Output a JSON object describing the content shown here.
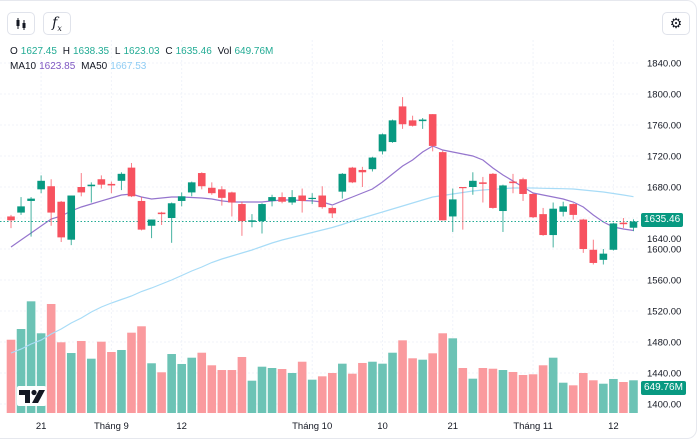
{
  "toolbar": {
    "chart_type_icon": "candlestick-icon",
    "indicators_icon": "fx-icon",
    "settings_icon": "gear-icon"
  },
  "legend": {
    "o_label": "O",
    "o_value": "1627.45",
    "h_label": "H",
    "h_value": "1638.35",
    "l_label": "L",
    "l_value": "1623.03",
    "c_label": "C",
    "c_value": "1635.46",
    "vol_label": "Vol",
    "vol_value": "649.76M",
    "ma10_label": "MA10",
    "ma10_value": "1623.85",
    "ma50_label": "MA50",
    "ma50_value": "1667.53"
  },
  "last_price_tag": "1635.46",
  "last_volume_tag": "649.76M",
  "colors": {
    "up": "#089981",
    "down": "#f7525f",
    "vol_up": "#6cc3b5",
    "vol_down": "#fa9a9e",
    "ma10": "#9575cd",
    "ma50": "#a8dcf7",
    "last_line": "#22ab94"
  },
  "chart_data": {
    "type": "candlestick",
    "title": "",
    "grid": true,
    "price_range": [
      1390,
      1850
    ],
    "price_ticks": [
      "1840.00",
      "1800.00",
      "1760.00",
      "1720.00",
      "1680.00",
      "1640.00",
      "1600.00",
      "1560.00",
      "1520.00",
      "1480.00",
      "1440.00",
      "1400.00"
    ],
    "x_ticks": [
      {
        "label": "21",
        "index": 3
      },
      {
        "label": "Tháng 9",
        "index": 10
      },
      {
        "label": "12",
        "index": 17
      },
      {
        "label": "Tháng 10",
        "index": 30
      },
      {
        "label": "10",
        "index": 37
      },
      {
        "label": "21",
        "index": 44
      },
      {
        "label": "Tháng 11",
        "index": 52
      },
      {
        "label": "12",
        "index": 60
      }
    ],
    "ohlc": [
      [
        1642,
        1644,
        1627,
        1637
      ],
      [
        1647,
        1667,
        1644,
        1655
      ],
      [
        1662,
        1667,
        1616,
        1665
      ],
      [
        1677,
        1695,
        1672,
        1688
      ],
      [
        1681,
        1690,
        1630,
        1647
      ],
      [
        1661,
        1662,
        1609,
        1615
      ],
      [
        1612,
        1669,
        1605,
        1669
      ],
      [
        1680,
        1698,
        1668,
        1673
      ],
      [
        1681,
        1686,
        1660,
        1683
      ],
      [
        1690,
        1695,
        1678,
        1683
      ],
      [
        1684,
        1687,
        1672,
        1682
      ],
      [
        1688,
        1699,
        1676,
        1697
      ],
      [
        1705,
        1711,
        1667,
        1668
      ],
      [
        1662,
        1667,
        1624,
        1625
      ],
      [
        1630,
        1638,
        1614,
        1638
      ],
      [
        1647,
        1648,
        1631,
        1645
      ],
      [
        1640,
        1660,
        1608,
        1659
      ],
      [
        1662,
        1673,
        1655,
        1668
      ],
      [
        1673,
        1687,
        1668,
        1686
      ],
      [
        1698,
        1699,
        1677,
        1681
      ],
      [
        1679,
        1686,
        1670,
        1672
      ],
      [
        1677,
        1681,
        1656,
        1666
      ],
      [
        1673,
        1674,
        1642,
        1660
      ],
      [
        1658,
        1661,
        1617,
        1636
      ],
      [
        1635,
        1645,
        1628,
        1637
      ],
      [
        1636,
        1659,
        1620,
        1658
      ],
      [
        1662,
        1670,
        1655,
        1667
      ],
      [
        1667,
        1673,
        1659,
        1661
      ],
      [
        1660,
        1676,
        1657,
        1667
      ],
      [
        1669,
        1678,
        1647,
        1662
      ],
      [
        1665,
        1672,
        1658,
        1666
      ],
      [
        1669,
        1681,
        1652,
        1654
      ],
      [
        1653,
        1655,
        1640,
        1646
      ],
      [
        1674,
        1698,
        1665,
        1697
      ],
      [
        1705,
        1706,
        1685,
        1686
      ],
      [
        1702,
        1706,
        1680,
        1699
      ],
      [
        1703,
        1719,
        1700,
        1718
      ],
      [
        1726,
        1749,
        1722,
        1748
      ],
      [
        1738,
        1767,
        1737,
        1766
      ],
      [
        1784,
        1796,
        1755,
        1761
      ],
      [
        1766,
        1772,
        1758,
        1759
      ],
      [
        1765,
        1769,
        1755,
        1767
      ],
      [
        1774,
        1774,
        1726,
        1733
      ],
      [
        1725,
        1727,
        1637,
        1637
      ],
      [
        1642,
        1678,
        1622,
        1664
      ],
      [
        1680,
        1680,
        1625,
        1679
      ],
      [
        1680,
        1699,
        1670,
        1688
      ],
      [
        1686,
        1693,
        1660,
        1684
      ],
      [
        1697,
        1698,
        1652,
        1653
      ],
      [
        1649,
        1683,
        1622,
        1682
      ],
      [
        1687,
        1697,
        1672,
        1685
      ],
      [
        1690,
        1692,
        1662,
        1671
      ],
      [
        1671,
        1672,
        1640,
        1641
      ],
      [
        1645,
        1653,
        1617,
        1618
      ],
      [
        1618,
        1660,
        1602,
        1652
      ],
      [
        1648,
        1661,
        1642,
        1655
      ],
      [
        1658,
        1659,
        1638,
        1644
      ],
      [
        1638,
        1639,
        1595,
        1600
      ],
      [
        1599,
        1612,
        1580,
        1582
      ],
      [
        1586,
        1600,
        1580,
        1594
      ],
      [
        1599,
        1634,
        1598,
        1633
      ],
      [
        1634,
        1640,
        1627,
        1632
      ],
      [
        1627.45,
        1638.35,
        1623.03,
        1635.46
      ]
    ],
    "volume_millions": [
      1456,
      1669,
      2219,
      1584,
      2166,
      1405,
      1192,
      1431,
      1079,
      1417,
      1212,
      1252,
      1596,
      1723,
      988,
      809,
      1172,
      974,
      1099,
      1198,
      948,
      854,
      854,
      1113,
      642,
      920,
      894,
      874,
      795,
      1019,
      662,
      729,
      795,
      980,
      781,
      994,
      1019,
      980,
      1198,
      1444,
      1087,
      1059,
      1186,
      1584,
      1484,
      894,
      682,
      894,
      880,
      854,
      815,
      755,
      769,
      948,
      1099,
      602,
      550,
      795,
      650,
      582,
      676,
      616,
      649.76
    ],
    "ma10": [
      1602.6,
      1611.6,
      1620.6,
      1629.7,
      1638.7,
      1642.6,
      1649.0,
      1654.2,
      1658.1,
      1662.0,
      1665.8,
      1669.7,
      1671.0,
      1667.1,
      1664.5,
      1665.8,
      1667.1,
      1667.1,
      1666.5,
      1665.8,
      1664.5,
      1662.0,
      1660.6,
      1660.6,
      1660.6,
      1660.6,
      1662.0,
      1663.2,
      1663.2,
      1662.6,
      1662.0,
      1660.6,
      1656.8,
      1662.0,
      1667.1,
      1672.3,
      1677.4,
      1686.5,
      1696.8,
      1707.1,
      1714.8,
      1725.2,
      1732.9,
      1727.7,
      1725.2,
      1722.6,
      1720.0,
      1714.8,
      1704.5,
      1695.5,
      1687.7,
      1680.0,
      1672.3,
      1669.7,
      1667.1,
      1664.5,
      1660.6,
      1654.2,
      1643.9,
      1634.8,
      1628.4,
      1625.8,
      1623.85
    ],
    "ma50": [
      1465.8,
      1470.9,
      1477.4,
      1482.5,
      1490.3,
      1496.8,
      1504.5,
      1511.0,
      1518.7,
      1525.2,
      1530.3,
      1534.8,
      1539.4,
      1545.2,
      1549.7,
      1554.8,
      1560.0,
      1565.8,
      1571.6,
      1576.8,
      1582.6,
      1587.1,
      1591.0,
      1594.8,
      1598.7,
      1603.2,
      1607.7,
      1611.6,
      1614.8,
      1618.1,
      1621.3,
      1624.5,
      1627.7,
      1631.6,
      1636.1,
      1640.0,
      1643.9,
      1647.7,
      1651.6,
      1655.5,
      1659.4,
      1663.2,
      1667.1,
      1669.0,
      1671.0,
      1672.9,
      1674.8,
      1676.1,
      1677.0,
      1677.8,
      1678.7,
      1678.7,
      1678.7,
      1678.3,
      1678.1,
      1677.8,
      1677.4,
      1676.1,
      1674.8,
      1673.6,
      1671.6,
      1669.7,
      1667.53
    ]
  }
}
